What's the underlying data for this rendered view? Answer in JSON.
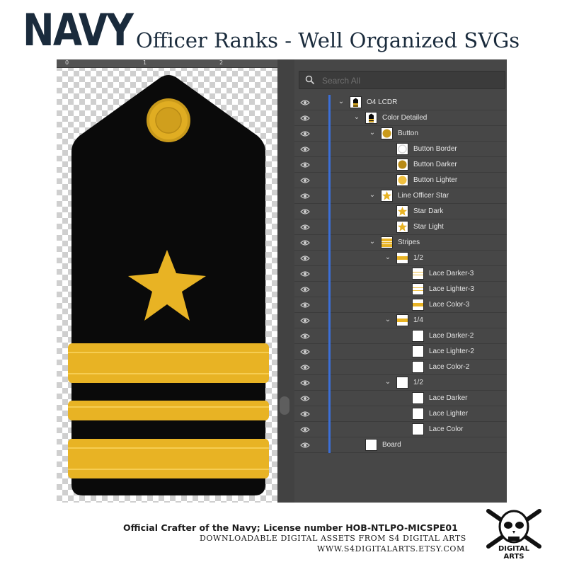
{
  "header": {
    "brand": "NAVY",
    "headline": "Officer Ranks - Well Organized SVGs"
  },
  "canvas": {
    "ruler_labels": [
      "0",
      "1",
      "2"
    ]
  },
  "colors": {
    "board": "#0a0a0a",
    "gold": "#e8b324",
    "gold_dark": "#c99a1b",
    "gold_light": "#f4c63d",
    "panel_bg": "#474747",
    "selection_bar": "#3b6fd8"
  },
  "layers_panel": {
    "search_placeholder": "Search All",
    "layers": [
      {
        "name": "O4 LCDR",
        "thumb": "board"
      },
      {
        "name": "Color Detailed",
        "thumb": "board"
      },
      {
        "name": "Button",
        "thumb": "button"
      },
      {
        "name": "Button Border",
        "thumb": "ring"
      },
      {
        "name": "Button Darker",
        "thumb": "button-dark"
      },
      {
        "name": "Button Lighter",
        "thumb": "button-light"
      },
      {
        "name": "Line Officer Star",
        "thumb": "star"
      },
      {
        "name": "Star Dark",
        "thumb": "star"
      },
      {
        "name": "Star Light",
        "thumb": "star"
      },
      {
        "name": "Stripes",
        "thumb": "stripes"
      },
      {
        "name": "1/2",
        "thumb": "stripe"
      },
      {
        "name": "Lace Darker-3",
        "thumb": "lines"
      },
      {
        "name": "Lace Lighter-3",
        "thumb": "lines"
      },
      {
        "name": "Lace Color-3",
        "thumb": "stripe"
      },
      {
        "name": "1/4",
        "thumb": "stripe"
      },
      {
        "name": "Lace Darker-2",
        "thumb": "blank"
      },
      {
        "name": "Lace Lighter-2",
        "thumb": "blank"
      },
      {
        "name": "Lace Color-2",
        "thumb": "blank"
      },
      {
        "name": "1/2",
        "thumb": "blank"
      },
      {
        "name": "Lace Darker",
        "thumb": "blank"
      },
      {
        "name": "Lace Lighter",
        "thumb": "blank"
      },
      {
        "name": "Lace Color",
        "thumb": "blank"
      },
      {
        "name": "Board",
        "thumb": "blank"
      }
    ]
  },
  "footer": {
    "line1": "Official Crafter of the Navy; License number HOB-NTLPO-MICSPE01",
    "line2": "DOWNLOADABLE DIGITAL ASSETS FROM S4 DIGITAL ARTS",
    "line3": "WWW.S4DIGITALARTS.ETSY.COM",
    "logo_text": "DIGITAL ARTS"
  }
}
